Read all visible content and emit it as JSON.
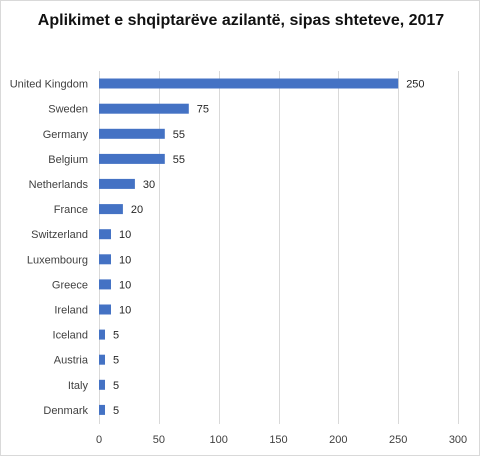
{
  "chart_data": {
    "type": "bar",
    "orientation": "horizontal",
    "title": "Aplikimet e shqiptarëve azilantë, sipas shteteve, 2017",
    "categories": [
      "United Kingdom",
      "Sweden",
      "Germany",
      "Belgium",
      "Netherlands",
      "France",
      "Switzerland",
      "Luxembourg",
      "Greece",
      "Ireland",
      "Iceland",
      "Austria",
      "Italy",
      "Denmark"
    ],
    "values": [
      250,
      75,
      55,
      55,
      30,
      20,
      10,
      10,
      10,
      10,
      5,
      5,
      5,
      5
    ],
    "xlim": [
      0,
      300
    ],
    "xticks": [
      0,
      50,
      100,
      150,
      200,
      250,
      300
    ],
    "grid": "vertical",
    "data_labels": true,
    "legend": "none",
    "bar_color": "#4472c4",
    "grid_color": "#d9d9d9"
  }
}
